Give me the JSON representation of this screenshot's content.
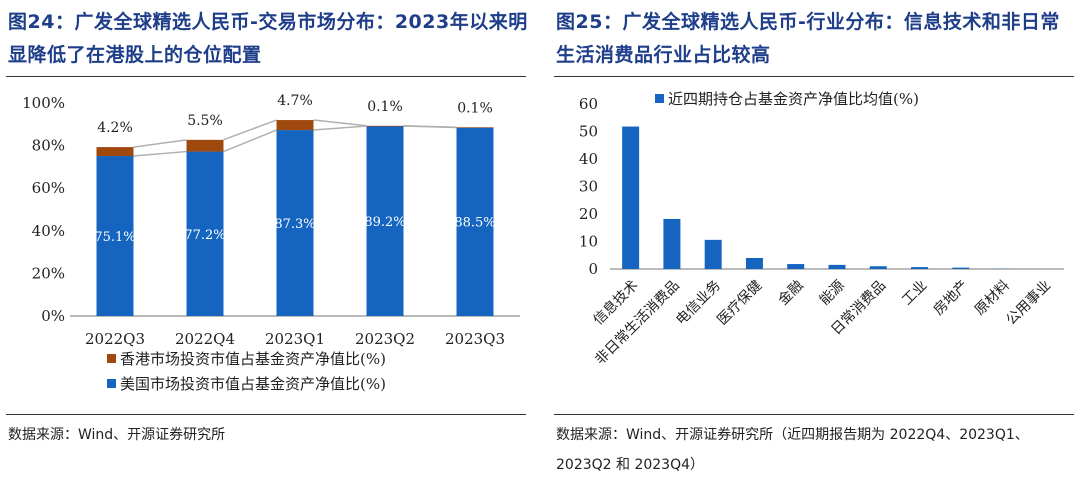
{
  "left": {
    "title": "图24：广发全球精选人民币-交易市场分布：2023年以来明显降低了在港股上的仓位配置",
    "source": "数据来源：Wind、开源证券研究所",
    "colors": {
      "us": "#1565C0",
      "hk": "#A0490E",
      "line": "#b0b0b0"
    },
    "chart_data": {
      "type": "bar",
      "stacked": true,
      "categories": [
        "2022Q3",
        "2022Q4",
        "2023Q1",
        "2023Q2",
        "2023Q3"
      ],
      "series": [
        {
          "name": "美国市场投资市值占基金资产净值比(%)",
          "values": [
            75.1,
            77.2,
            87.3,
            89.2,
            88.5
          ],
          "labels": [
            "75.1%",
            "77.2%",
            "87.3%",
            "89.2%",
            "88.5%"
          ]
        },
        {
          "name": "香港市场投资市值占基金资产净值比(%)",
          "values": [
            4.2,
            5.5,
            4.7,
            0.1,
            0.1
          ],
          "labels": [
            "4.2%",
            "5.5%",
            "4.7%",
            "0.1%",
            "0.1%"
          ]
        }
      ],
      "yticks": [
        "0%",
        "20%",
        "40%",
        "60%",
        "80%",
        "100%"
      ],
      "ylim": [
        0,
        100
      ],
      "legend": "bottom"
    }
  },
  "right": {
    "title": "图25：广发全球精选人民币-行业分布：信息技术和非日常生活消费品行业占比较高",
    "source": "数据来源：Wind、开源证券研究所（近四期报告期为 2022Q4、2023Q1、2023Q2 和 2023Q4）",
    "colors": {
      "bar": "#1565C0"
    },
    "chart_data": {
      "type": "bar",
      "categories": [
        "信息技术",
        "非日常生活消费品",
        "电信业务",
        "医疗保健",
        "金融",
        "能源",
        "日常消费品",
        "工业",
        "房地产",
        "原材料",
        "公用事业"
      ],
      "series": [
        {
          "name": "近四期持仓占基金资产净值比均值(%)",
          "values": [
            51.8,
            18.2,
            10.6,
            4.0,
            1.8,
            1.5,
            1.0,
            0.7,
            0.5,
            0.1,
            0.0
          ]
        }
      ],
      "yticks": [
        "0",
        "10",
        "20",
        "30",
        "40",
        "50",
        "60"
      ],
      "ylim": [
        0,
        60
      ],
      "legend": "top-right"
    }
  }
}
